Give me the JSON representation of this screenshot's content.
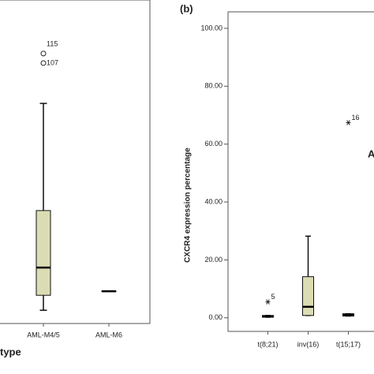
{
  "chart_data": [
    {
      "type": "box",
      "x_label": "type",
      "categories": [
        "AML-M4/5",
        "AML-M6"
      ],
      "boxes": [
        {
          "min": 2.7,
          "q1": 7.9,
          "median": 17.5,
          "q3": 37.3,
          "max": 74.5,
          "outliers": [
            {
              "value": 91.8,
              "label": "115"
            },
            {
              "value": 88.5,
              "label": "107"
            }
          ]
        },
        {
          "min": 9.3,
          "q1": 9.3,
          "median": 9.3,
          "q3": 9.3,
          "max": 9.3,
          "outliers": []
        }
      ],
      "color": "#dcdcb4",
      "outlier_marker": "circle",
      "ylim": [
        -1.9,
        110.4
      ]
    },
    {
      "type": "box",
      "panel_label": "(b)",
      "y_label": "CXCR4 expression percentage",
      "x_label": "A",
      "categories": [
        "t(8;21)",
        "inv(16)",
        "t(15;17)"
      ],
      "boxes": [
        {
          "min": 0.2,
          "q1": 0.2,
          "median": 0.5,
          "q3": 0.8,
          "max": 0.8,
          "outliers": [
            {
              "value": 5.5,
              "label": "5"
            }
          ]
        },
        {
          "min": 0.8,
          "q1": 0.8,
          "median": 3.8,
          "q3": 14.2,
          "max": 28.2,
          "outliers": []
        },
        {
          "min": 0.6,
          "q1": 0.6,
          "median": 1.0,
          "q3": 1.4,
          "max": 1.4,
          "outliers": [
            {
              "value": 67.4,
              "label": "16"
            }
          ]
        }
      ],
      "color": "#dcdcb4",
      "outlier_marker": "star",
      "ylim": [
        -4.7,
        105.7
      ],
      "yticks": [
        {
          "value": 0,
          "label": "0.00"
        },
        {
          "value": 20,
          "label": "20.00"
        },
        {
          "value": 40,
          "label": "40.00"
        },
        {
          "value": 60,
          "label": "60.00"
        },
        {
          "value": 80,
          "label": "80.00"
        },
        {
          "value": 100,
          "label": "100.00"
        }
      ]
    }
  ]
}
